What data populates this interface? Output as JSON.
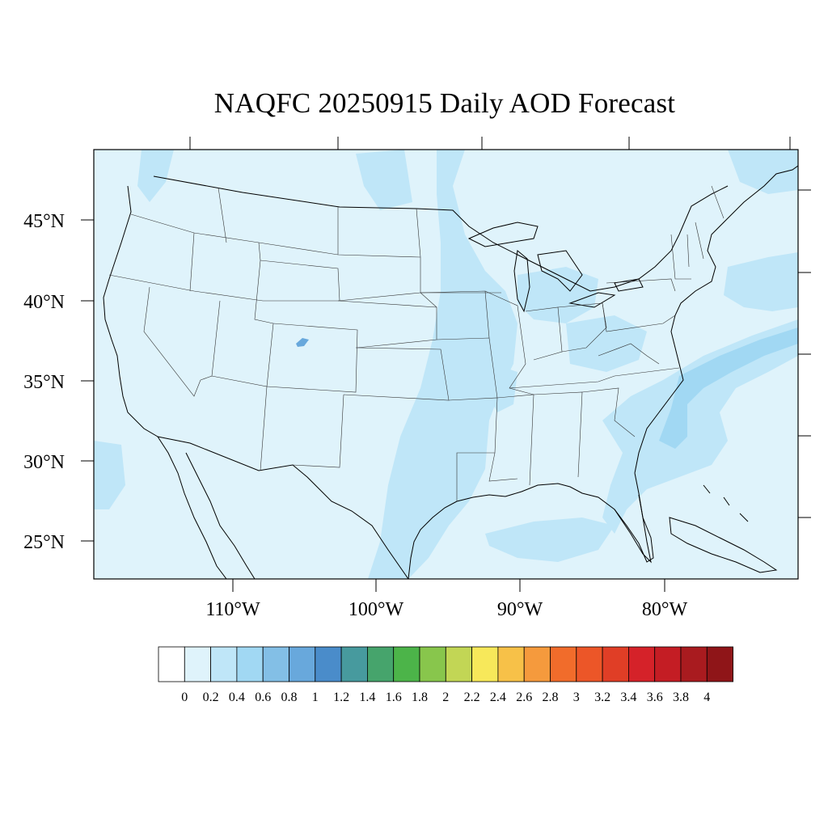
{
  "title": "NAQFC 20250915 Daily AOD Forecast",
  "map": {
    "projection": "lambert-conformal",
    "region": "CONUS",
    "lat_labels": [
      "45°N",
      "40°N",
      "35°N",
      "30°N",
      "25°N"
    ],
    "lon_labels": [
      "110°W",
      "100°W",
      "90°W",
      "80°W"
    ],
    "background_aod_color": "#dff3fb"
  },
  "colorbar": {
    "labels": [
      "0",
      "0.2",
      "0.4",
      "0.6",
      "0.8",
      "1",
      "1.2",
      "1.4",
      "1.6",
      "1.8",
      "2",
      "2.2",
      "2.4",
      "2.6",
      "2.8",
      "3",
      "3.2",
      "3.4",
      "3.6",
      "3.8",
      "4"
    ],
    "colors": [
      "#ffffff",
      "#dff3fb",
      "#bfe6f8",
      "#a1d8f3",
      "#83bfe6",
      "#68a8dc",
      "#4a8cca",
      "#479a9e",
      "#46a46c",
      "#4cb449",
      "#88c64c",
      "#c2d655",
      "#f7e85a",
      "#f7c148",
      "#f59a3d",
      "#f16c2b",
      "#ec5628",
      "#e03e26",
      "#d52229",
      "#c41d24",
      "#a91b1f",
      "#8f1518"
    ]
  }
}
